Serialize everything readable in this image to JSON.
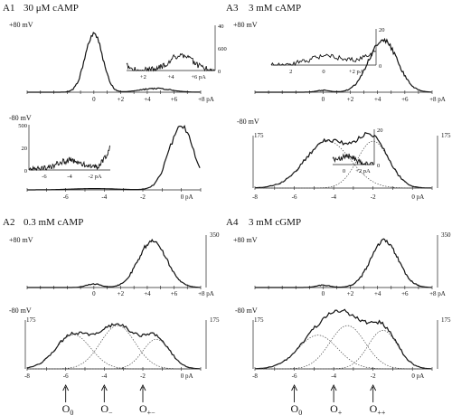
{
  "figure": {
    "tick_values": [
      "-8",
      "-6",
      "-4",
      "-2",
      "0",
      "+2",
      "+4",
      "+6",
      "+8"
    ],
    "unit": "pA"
  },
  "panels": [
    {
      "id": "A1",
      "title": "30 μM cAMP",
      "traces": [
        {
          "label": "+80 mV",
          "ticks": [
            "0",
            "+2",
            "+4",
            "+6",
            "+8 pA"
          ],
          "ymax": "",
          "peaks": [
            {
              "mu": 0,
              "sd": 0.65,
              "a": 0.45
            },
            {
              "mu": 4.6,
              "sd": 1.15,
              "a": 0.028
            }
          ],
          "components": [],
          "inset": {
            "ylabels": [
              "40",
              "600",
              "0"
            ],
            "xlabels": [
              "+2",
              "+4",
              "+6 pA"
            ],
            "right_axis": "y",
            "peaks": [
              {
                "mu": -2,
                "sd": 1.0,
                "a": 1.6
              },
              {
                "mu": 4.3,
                "sd": 0.9,
                "a": 0.55
              }
            ]
          }
        },
        {
          "label": "-80 mV",
          "ticks": [
            "-6",
            "-4",
            "-2",
            "0 pA"
          ],
          "ymax": "",
          "peaks": [
            {
              "mu": 0,
              "sd": 0.65,
              "a": 0.5
            },
            {
              "mu": -4.5,
              "sd": 1.2,
              "a": 0.01
            }
          ],
          "components": [],
          "inset": {
            "ylabels": [
              "500",
              "20",
              "0"
            ],
            "xlabels": [
              "-6",
              "-4",
              "-2 pA"
            ],
            "right_axis": "",
            "peaks": [
              {
                "mu": 0.5,
                "sd": 0.9,
                "a": 1.5
              },
              {
                "mu": -4,
                "sd": 1.1,
                "a": 0.32
              }
            ]
          }
        }
      ]
    },
    {
      "id": "A3",
      "title": "3 mM cAMP",
      "traces": [
        {
          "label": "+80 mV",
          "ticks": [
            "0",
            "+2",
            "+4",
            "+6",
            "+8 pA"
          ],
          "ymax": "",
          "peaks": [
            {
              "mu": 4.4,
              "sd": 1.05,
              "a": 0.56
            },
            {
              "mu": 0,
              "sd": 0.5,
              "a": 0.02
            }
          ],
          "components": [],
          "inset": {
            "ylabels": [
              "20",
              "0"
            ],
            "xlabels": [
              "2",
              "0",
              "+2 pA"
            ],
            "right_axis": "y",
            "peaks": [
              {
                "mu": 4,
                "sd": 1.1,
                "a": 1.5
              },
              {
                "mu": 0.2,
                "sd": 0.9,
                "a": 0.35
              }
            ]
          }
        },
        {
          "label": "-80 mV",
          "ticks": [
            "-8",
            "-6",
            "-4",
            "-2",
            "0 pA"
          ],
          "ymax": "175",
          "peaks": [
            {
              "mu": -4.3,
              "sd": 1.15,
              "a": 0.44
            },
            {
              "mu": -2,
              "sd": 0.8,
              "a": 0.44
            }
          ],
          "components": [
            {
              "mu": -4.3,
              "sd": 1.15,
              "a": 0.44
            },
            {
              "mu": -2,
              "sd": 0.8,
              "a": 0.44
            }
          ],
          "inset": {
            "ylabels": [
              "20",
              "0"
            ],
            "xlabels": [
              "0",
              "+2 pA"
            ],
            "right_axis": "y",
            "peaks": [
              {
                "mu": -2.5,
                "sd": 0.8,
                "a": 1.4
              },
              {
                "mu": 0.3,
                "sd": 0.6,
                "a": 0.35
              }
            ]
          }
        }
      ]
    },
    {
      "id": "A2",
      "title": "0.3 mM cAMP",
      "traces": [
        {
          "label": "+80 mV",
          "ticks": [
            "0",
            "+2",
            "+4",
            "+6",
            "+8 pA"
          ],
          "ymax": "350",
          "peaks": [
            {
              "mu": 4.4,
              "sd": 1.05,
              "a": 0.6
            },
            {
              "mu": 0,
              "sd": 0.55,
              "a": 0.045
            }
          ],
          "components": [],
          "inset": null
        },
        {
          "label": "-80 mV",
          "ticks": [
            "-8",
            "-6",
            "-4",
            "-2",
            "0 pA"
          ],
          "ymax": "175",
          "peaks": [
            {
              "mu": -5.6,
              "sd": 0.9,
              "a": 0.3
            },
            {
              "mu": -3.3,
              "sd": 0.9,
              "a": 0.38
            },
            {
              "mu": -1.3,
              "sd": 0.7,
              "a": 0.26
            }
          ],
          "components": [
            {
              "mu": -5.6,
              "sd": 0.9,
              "a": 0.3
            },
            {
              "mu": -3.3,
              "sd": 0.9,
              "a": 0.38
            },
            {
              "mu": -1.3,
              "sd": 0.7,
              "a": 0.26
            }
          ],
          "inset": null
        }
      ]
    },
    {
      "id": "A4",
      "title": "3 mM cGMP",
      "traces": [
        {
          "label": "+80 mV",
          "ticks": [
            "0",
            "+2",
            "+4",
            "+6",
            "+8 pA"
          ],
          "ymax": "350",
          "peaks": [
            {
              "mu": 4.5,
              "sd": 1.0,
              "a": 0.6
            },
            {
              "mu": 0,
              "sd": 0.5,
              "a": 0.03
            }
          ],
          "components": [],
          "inset": null
        },
        {
          "label": "-80 mV",
          "ticks": [
            "-8",
            "-6",
            "-4",
            "-2",
            "0 pA"
          ],
          "ymax": "175",
          "peaks": [
            {
              "mu": -4.8,
              "sd": 1.0,
              "a": 0.28
            },
            {
              "mu": -3.3,
              "sd": 0.9,
              "a": 0.36
            },
            {
              "mu": -1.5,
              "sd": 0.75,
              "a": 0.32
            }
          ],
          "components": [
            {
              "mu": -4.8,
              "sd": 1.0,
              "a": 0.28
            },
            {
              "mu": -3.3,
              "sd": 0.9,
              "a": 0.36
            },
            {
              "mu": -1.5,
              "sd": 0.75,
              "a": 0.32
            }
          ],
          "inset": null
        }
      ]
    }
  ],
  "markers": {
    "A2": [
      {
        "x": -6,
        "base": "O",
        "sub": "0"
      },
      {
        "x": -4,
        "base": "O",
        "sub": "−"
      },
      {
        "x": -2,
        "base": "O",
        "sub": "+−"
      }
    ],
    "A4": [
      {
        "x": -6,
        "base": "O",
        "sub": "0"
      },
      {
        "x": -4,
        "base": "O",
        "sub": "+"
      },
      {
        "x": -2,
        "base": "O",
        "sub": "++"
      }
    ]
  },
  "chart_data": [
    {
      "type": "area",
      "title": "A1 30 μM cAMP +80 mV",
      "xlabel": "pA",
      "x": [
        0,
        2,
        4,
        6,
        8
      ],
      "peaks_pA": [
        0,
        4.6
      ]
    },
    {
      "type": "area",
      "title": "A1 30 μM cAMP -80 mV",
      "xlabel": "pA",
      "x": [
        -6,
        -4,
        -2,
        0
      ],
      "peaks_pA": [
        0
      ]
    },
    {
      "type": "area",
      "title": "A3 3 mM cAMP +80 mV",
      "xlabel": "pA",
      "x": [
        0,
        2,
        4,
        6,
        8
      ],
      "peaks_pA": [
        4.4
      ]
    },
    {
      "type": "area",
      "title": "A3 3 mM cAMP -80 mV",
      "xlabel": "pA",
      "x": [
        -8,
        -6,
        -4,
        -2,
        0
      ],
      "ylim": [
        0,
        175
      ],
      "peaks_pA": [
        -4.3,
        -2
      ]
    },
    {
      "type": "area",
      "title": "A2 0.3 mM cAMP +80 mV",
      "xlabel": "pA",
      "x": [
        0,
        2,
        4,
        6,
        8
      ],
      "ylim": [
        0,
        350
      ],
      "peaks_pA": [
        0,
        4.4
      ]
    },
    {
      "type": "area",
      "title": "A2 0.3 mM cAMP -80 mV",
      "xlabel": "pA",
      "x": [
        -8,
        -6,
        -4,
        -2,
        0
      ],
      "ylim": [
        0,
        175
      ],
      "peaks_pA": [
        -5.6,
        -3.3,
        -1.3
      ]
    },
    {
      "type": "area",
      "title": "A4 3 mM cGMP +80 mV",
      "xlabel": "pA",
      "x": [
        0,
        2,
        4,
        6,
        8
      ],
      "ylim": [
        0,
        350
      ],
      "peaks_pA": [
        0,
        4.5
      ]
    },
    {
      "type": "area",
      "title": "A4 3 mM cGMP -80 mV",
      "xlabel": "pA",
      "x": [
        -8,
        -6,
        -4,
        -2,
        0
      ],
      "ylim": [
        0,
        175
      ],
      "peaks_pA": [
        -4.8,
        -3.3,
        -1.5
      ]
    }
  ]
}
